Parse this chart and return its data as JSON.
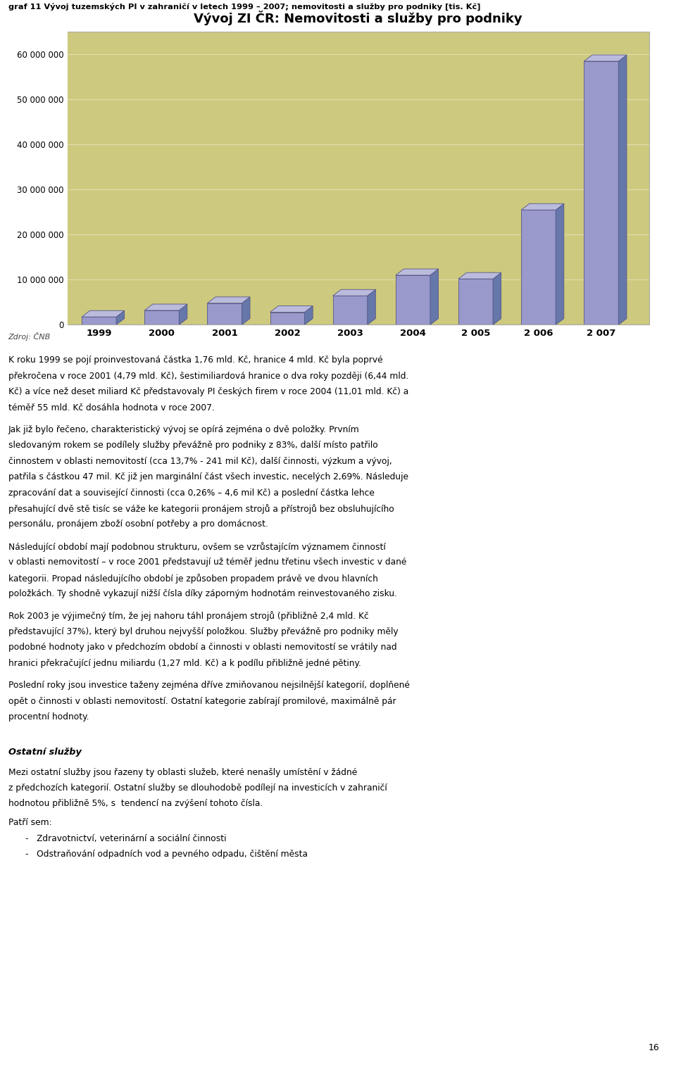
{
  "title": "Vývoj ZI ČR: Nemovitosti a služby pro podniky",
  "header": "graf 11 Vývoj tuzemských PI v zahraničí v letech 1999 – 2007; nemovitosti a služby pro podniky [tis. Kč]",
  "source": "Zdroj: ČNB",
  "categories": [
    "1999",
    "2000",
    "2001",
    "2002",
    "2003",
    "2004",
    "2 005",
    "2 006",
    "2 007"
  ],
  "values": [
    1760000,
    3200000,
    4790000,
    2800000,
    6440000,
    11010000,
    10200000,
    25500000,
    58500000
  ],
  "bar_color_face": "#9999cc",
  "bar_color_top": "#bbbbdd",
  "bar_color_side": "#6677aa",
  "bar_color_edge": "#555588",
  "bg_chart": "#cdc97e",
  "bg_page": "#ffffff",
  "yticks": [
    0,
    10000000,
    20000000,
    30000000,
    40000000,
    50000000,
    60000000
  ],
  "ytick_labels": [
    "0",
    "10 000 000",
    "20 000 000",
    "30 000 000",
    "40 000 000",
    "50 000 000",
    "60 000 000"
  ],
  "ylim": [
    0,
    65000000
  ],
  "title_fontsize": 13,
  "body_text_para1": [
    "K roku 1999 se pojí proinvestovaná částka 1,76 mld. Kč, hranice 4 mld. Kč byla poprvé",
    "překročena v roce 2001 (4,79 mld. Kč), šestimiliardová hranice o dva roky později (6,44 mld.",
    "Kč) a více než deset miliard Kč představovaly PI českých firem v roce 2004 (11,01 mld. Kč) a",
    "téměř 55 mld. Kč dosáhla hodnota v roce 2007."
  ],
  "body_text_para2": [
    "Jak již bylo řečeno, charakteristický vývoj se opírá zejména o dvě položky. Prvním",
    "sledovaným rokem se podílely služby převážně pro podniky z 83%, další místo patřilo",
    "činnostem v oblasti nemovitostí (cca 13,7% - 241 mil Kč), další činnosti, výzkum a vývoj,",
    "patřila s částkou 47 mil. Kč již jen marginální část všech investic, necelých 2,69%. Následuje",
    "zpracování dat a související činnosti (cca 0,26% – 4,6 mil Kč) a poslední částka lehce",
    "přesahující dvě stě tisíc se váže ke kategorii pronájem strojů a přístrojů bez obsluhujícího",
    "personálu, pronájem zboží osobní potřeby a pro domácnost."
  ],
  "body_text_para3": [
    "Následující období mají podobnou strukturu, ovšem se vzrůstajícím významem činností",
    "v oblasti nemovitostí – v roce 2001 představují už téměř jednu třetinu všech investic v dané",
    "kategorii. Propad následujícího období je způsoben propadem právě ve dvou hlavních",
    "položkách. Ty shodně vykazují nižší čísla díky záporným hodnotám reinvestovaného zisku."
  ],
  "body_text_para4": [
    "Rok 2003 je výjimečný tím, že jej nahoru táhl pronájem strojů (přibližně 2,4 mld. Kč",
    "představující 37%), který byl druhou nejvyšší položkou. Služby převážně pro podniky měly",
    "podobné hodnoty jako v předchozím období a činnosti v oblasti nemovitostí se vrátily nad",
    "hranici překračující jednu miliardu (1,27 mld. Kč) a k podílu přibližně jedné pětiny."
  ],
  "body_text_para5": [
    "Poslední roky jsou investice taženy zejména dříve zmiňovanou nejsilnější kategorií, doplňené",
    "opět o činnosti v oblasti nemovitostí. Ostatní kategorie zabírají promilové, maximálně pár",
    "procentní hodnoty."
  ],
  "section_title": "Ostatní služby",
  "section_text_para1": [
    "Mezi ostatní služby jsou řazeny ty oblasti služeb, které nenašly umístění v žádné",
    "z předchozích kategorií. Ostatní služby se dlouhodobě podílejí na investicích v zahraničí",
    "hodnotou přibližně 5%, s  tendencí na zvýšení tohoto čísla."
  ],
  "section_text_patri": "Patří sem:",
  "section_bullets": [
    "Zdravotnictví, veterinární a sociální činnosti",
    "Odstraňování odpadních vod a pevného odpadu, čištění města"
  ],
  "page_number": "16"
}
